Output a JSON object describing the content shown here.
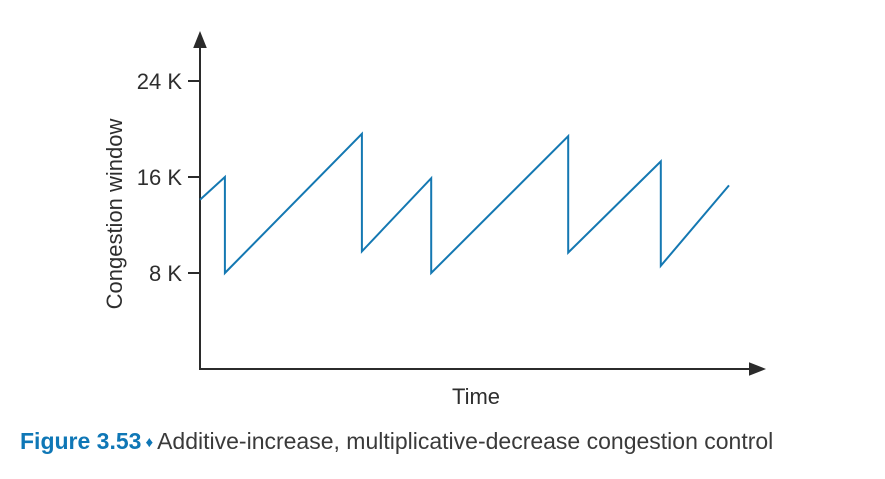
{
  "figure": {
    "label": "Figure 3.53",
    "separator": "♦",
    "caption": "Additive-increase, multiplicative-decrease congestion control",
    "accent_color": "#0f77b6",
    "caption_text_color": "#3a3a3a"
  },
  "chart_data": {
    "type": "line",
    "title": "",
    "xlabel": "Time",
    "ylabel": "Congestion window",
    "xlim": [
      0,
      100
    ],
    "ylim": [
      0,
      28
    ],
    "x_ticks": [],
    "y_ticks": [
      {
        "value": 8,
        "label": "8 K"
      },
      {
        "value": 16,
        "label": "16 K"
      },
      {
        "value": 24,
        "label": "24 K"
      }
    ],
    "grid": false,
    "legend": false,
    "line_color": "#1478b2",
    "axis_color": "#2b2b2b",
    "series": [
      {
        "name": "congestion-window-kb",
        "points": [
          {
            "t": 0,
            "w": 14.1
          },
          {
            "t": 4.7,
            "w": 16.0
          },
          {
            "t": 4.7,
            "w": 8.0
          },
          {
            "t": 30.6,
            "w": 19.6
          },
          {
            "t": 30.6,
            "w": 9.8
          },
          {
            "t": 43.7,
            "w": 15.9
          },
          {
            "t": 43.7,
            "w": 8.0
          },
          {
            "t": 69.6,
            "w": 19.4
          },
          {
            "t": 69.6,
            "w": 9.7
          },
          {
            "t": 87.1,
            "w": 17.3
          },
          {
            "t": 87.1,
            "w": 8.6
          },
          {
            "t": 100,
            "w": 15.3
          }
        ]
      }
    ]
  }
}
